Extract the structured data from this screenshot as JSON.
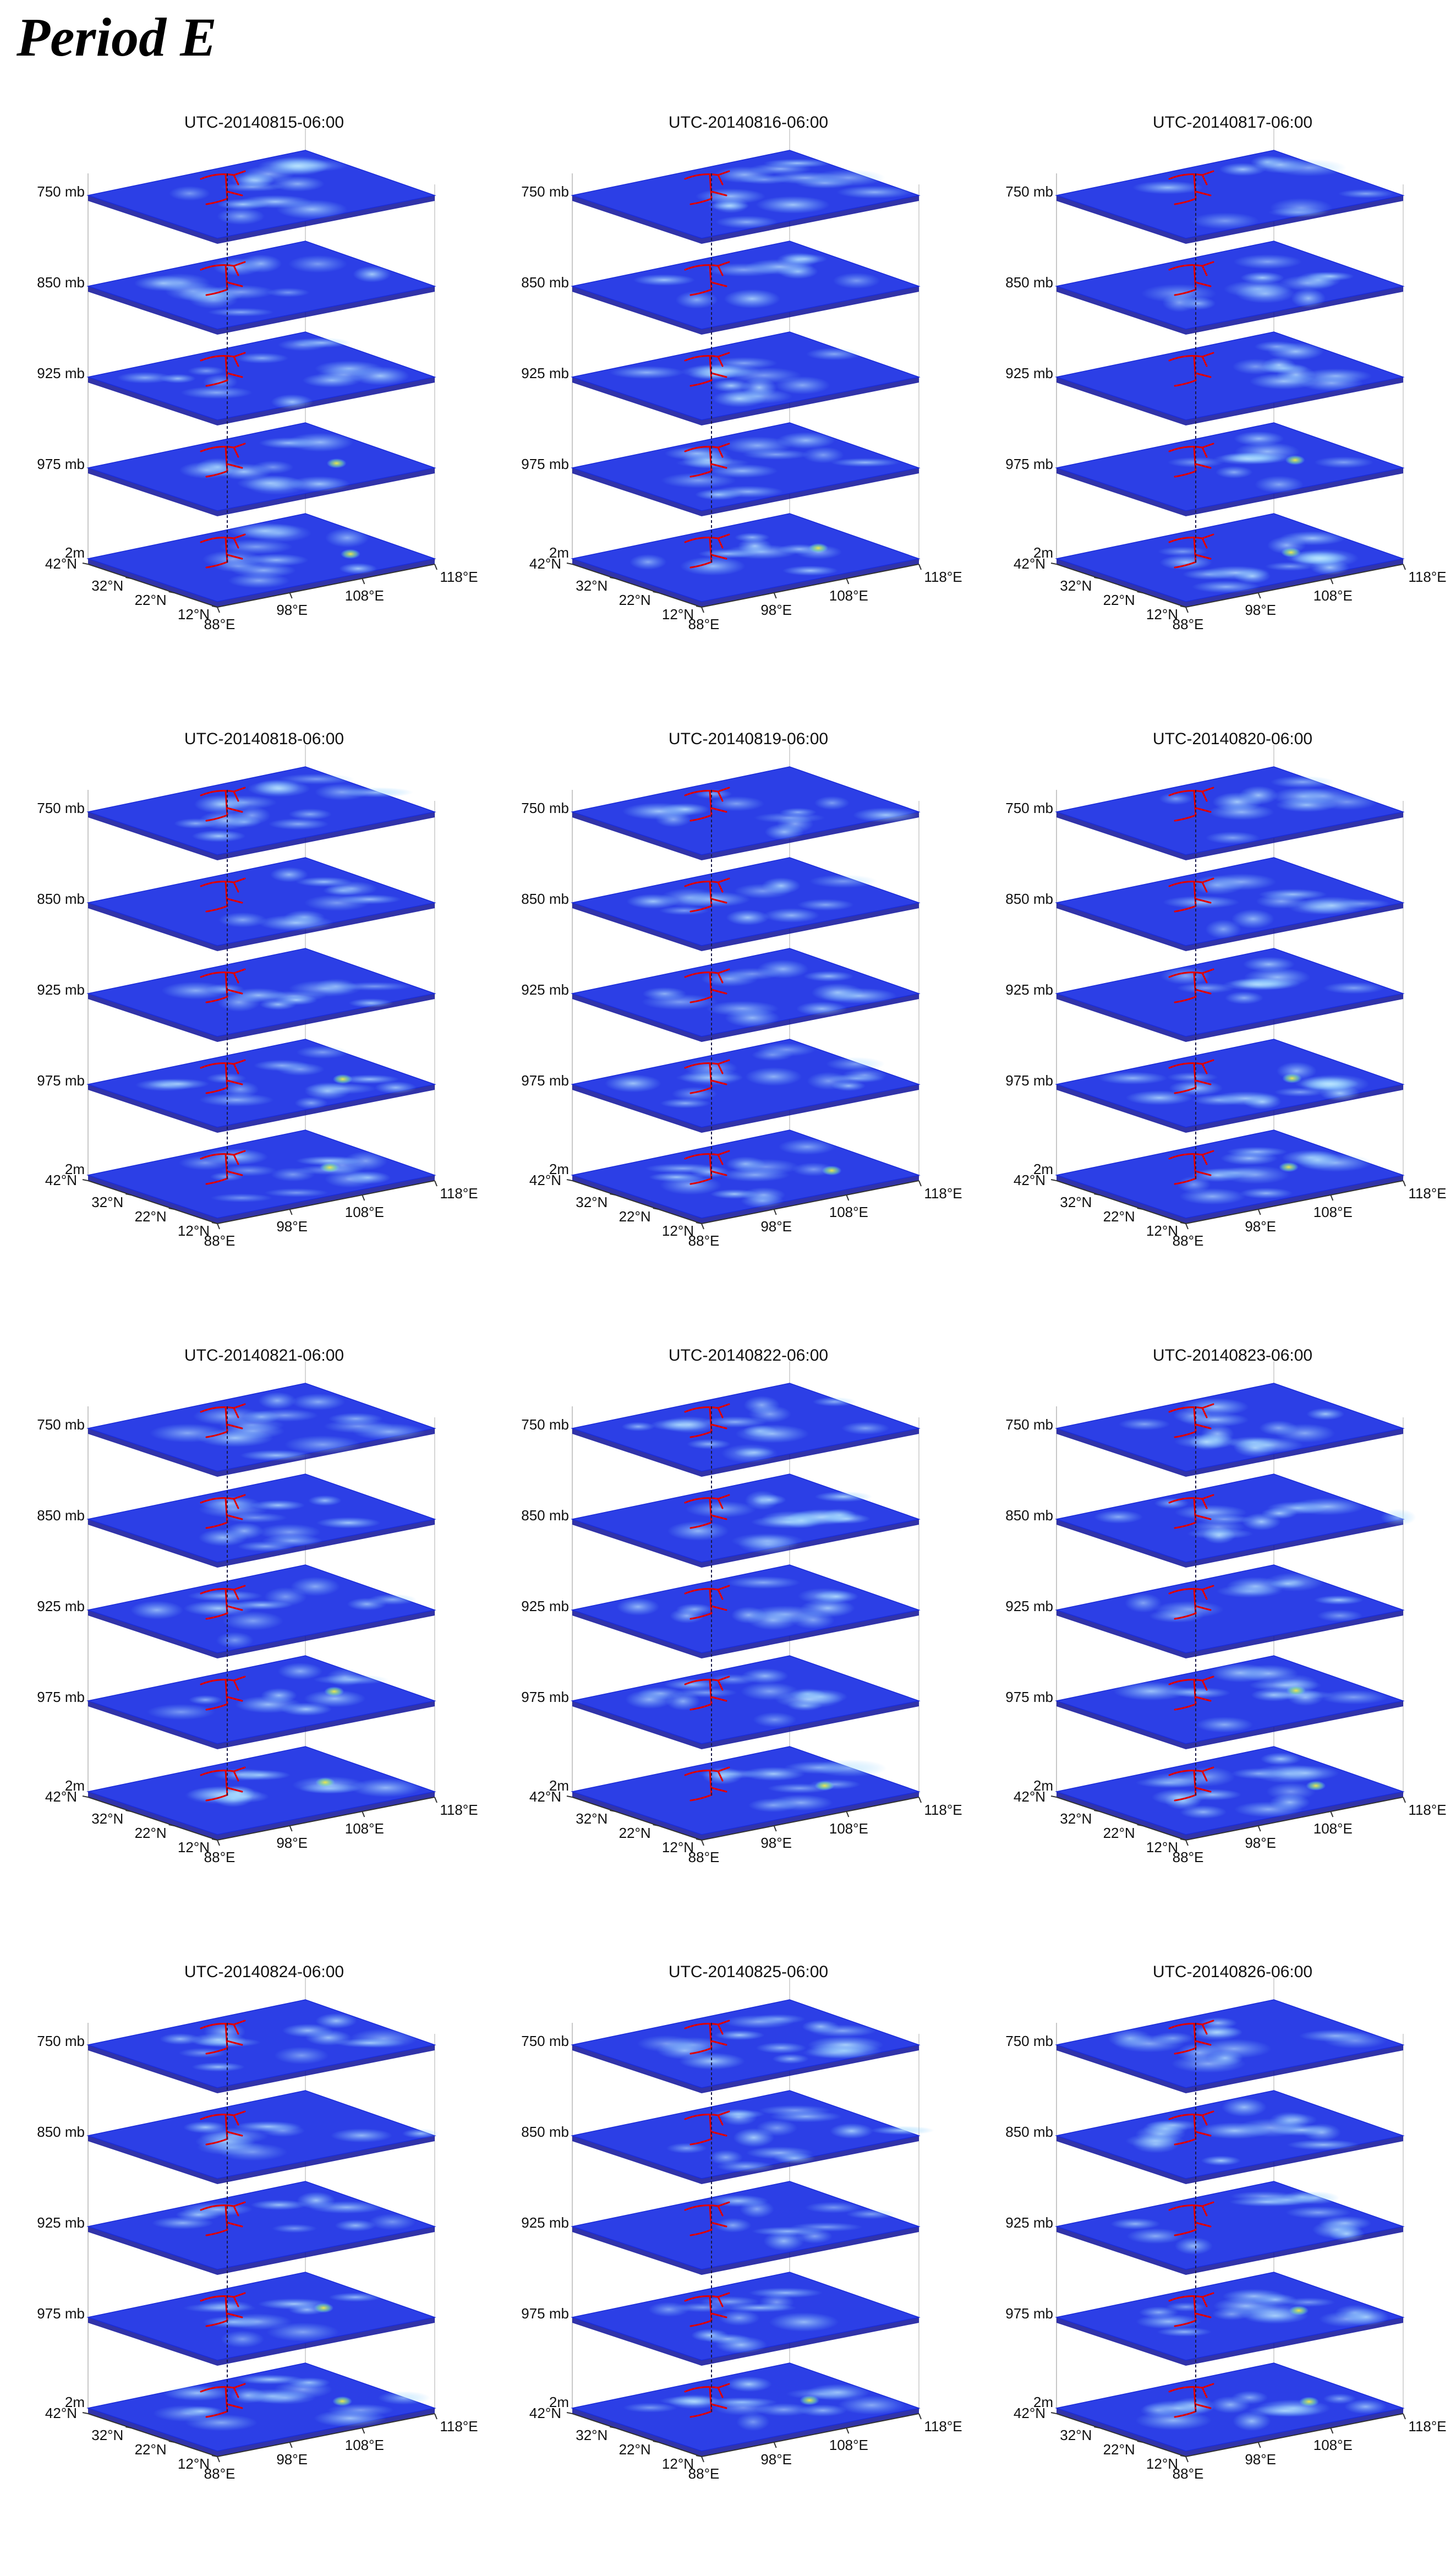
{
  "heading": "Period E",
  "colors": {
    "plane_base": "#2c3fe6",
    "plane_edge": "#1a2bd8",
    "gap_dark": "#0d0f9a",
    "highlight": "#f0e84a",
    "river": "#e00000",
    "axis": "#333333"
  },
  "chart_data": {
    "type": "heatmap",
    "layout": "4 rows x 3 columns of 3D stacked-layer panels",
    "common": {
      "levels": [
        "750 mb",
        "850 mb",
        "925 mb",
        "975 mb",
        "2m"
      ],
      "lat_ticks": [
        "42°N",
        "32°N",
        "22°N",
        "12°N"
      ],
      "lon_ticks": [
        "88°E",
        "98°E",
        "108°E",
        "118°E"
      ],
      "lat_range": [
        12,
        42
      ],
      "lon_range": [
        88,
        118
      ],
      "colormap": "jet (blue = low, yellow = high)"
    },
    "panels": [
      {
        "title": "UTC-20140815-06:00",
        "variant": 0
      },
      {
        "title": "UTC-20140816-06:00",
        "variant": 1
      },
      {
        "title": "UTC-20140817-06:00",
        "variant": 2
      },
      {
        "title": "UTC-20140818-06:00",
        "variant": 3
      },
      {
        "title": "UTC-20140819-06:00",
        "variant": 4
      },
      {
        "title": "UTC-20140820-06:00",
        "variant": 5
      },
      {
        "title": "UTC-20140821-06:00",
        "variant": 6
      },
      {
        "title": "UTC-20140822-06:00",
        "variant": 7
      },
      {
        "title": "UTC-20140823-06:00",
        "variant": 8
      },
      {
        "title": "UTC-20140824-06:00",
        "variant": 9
      },
      {
        "title": "UTC-20140825-06:00",
        "variant": 10
      },
      {
        "title": "UTC-20140826-06:00",
        "variant": 11
      }
    ]
  }
}
